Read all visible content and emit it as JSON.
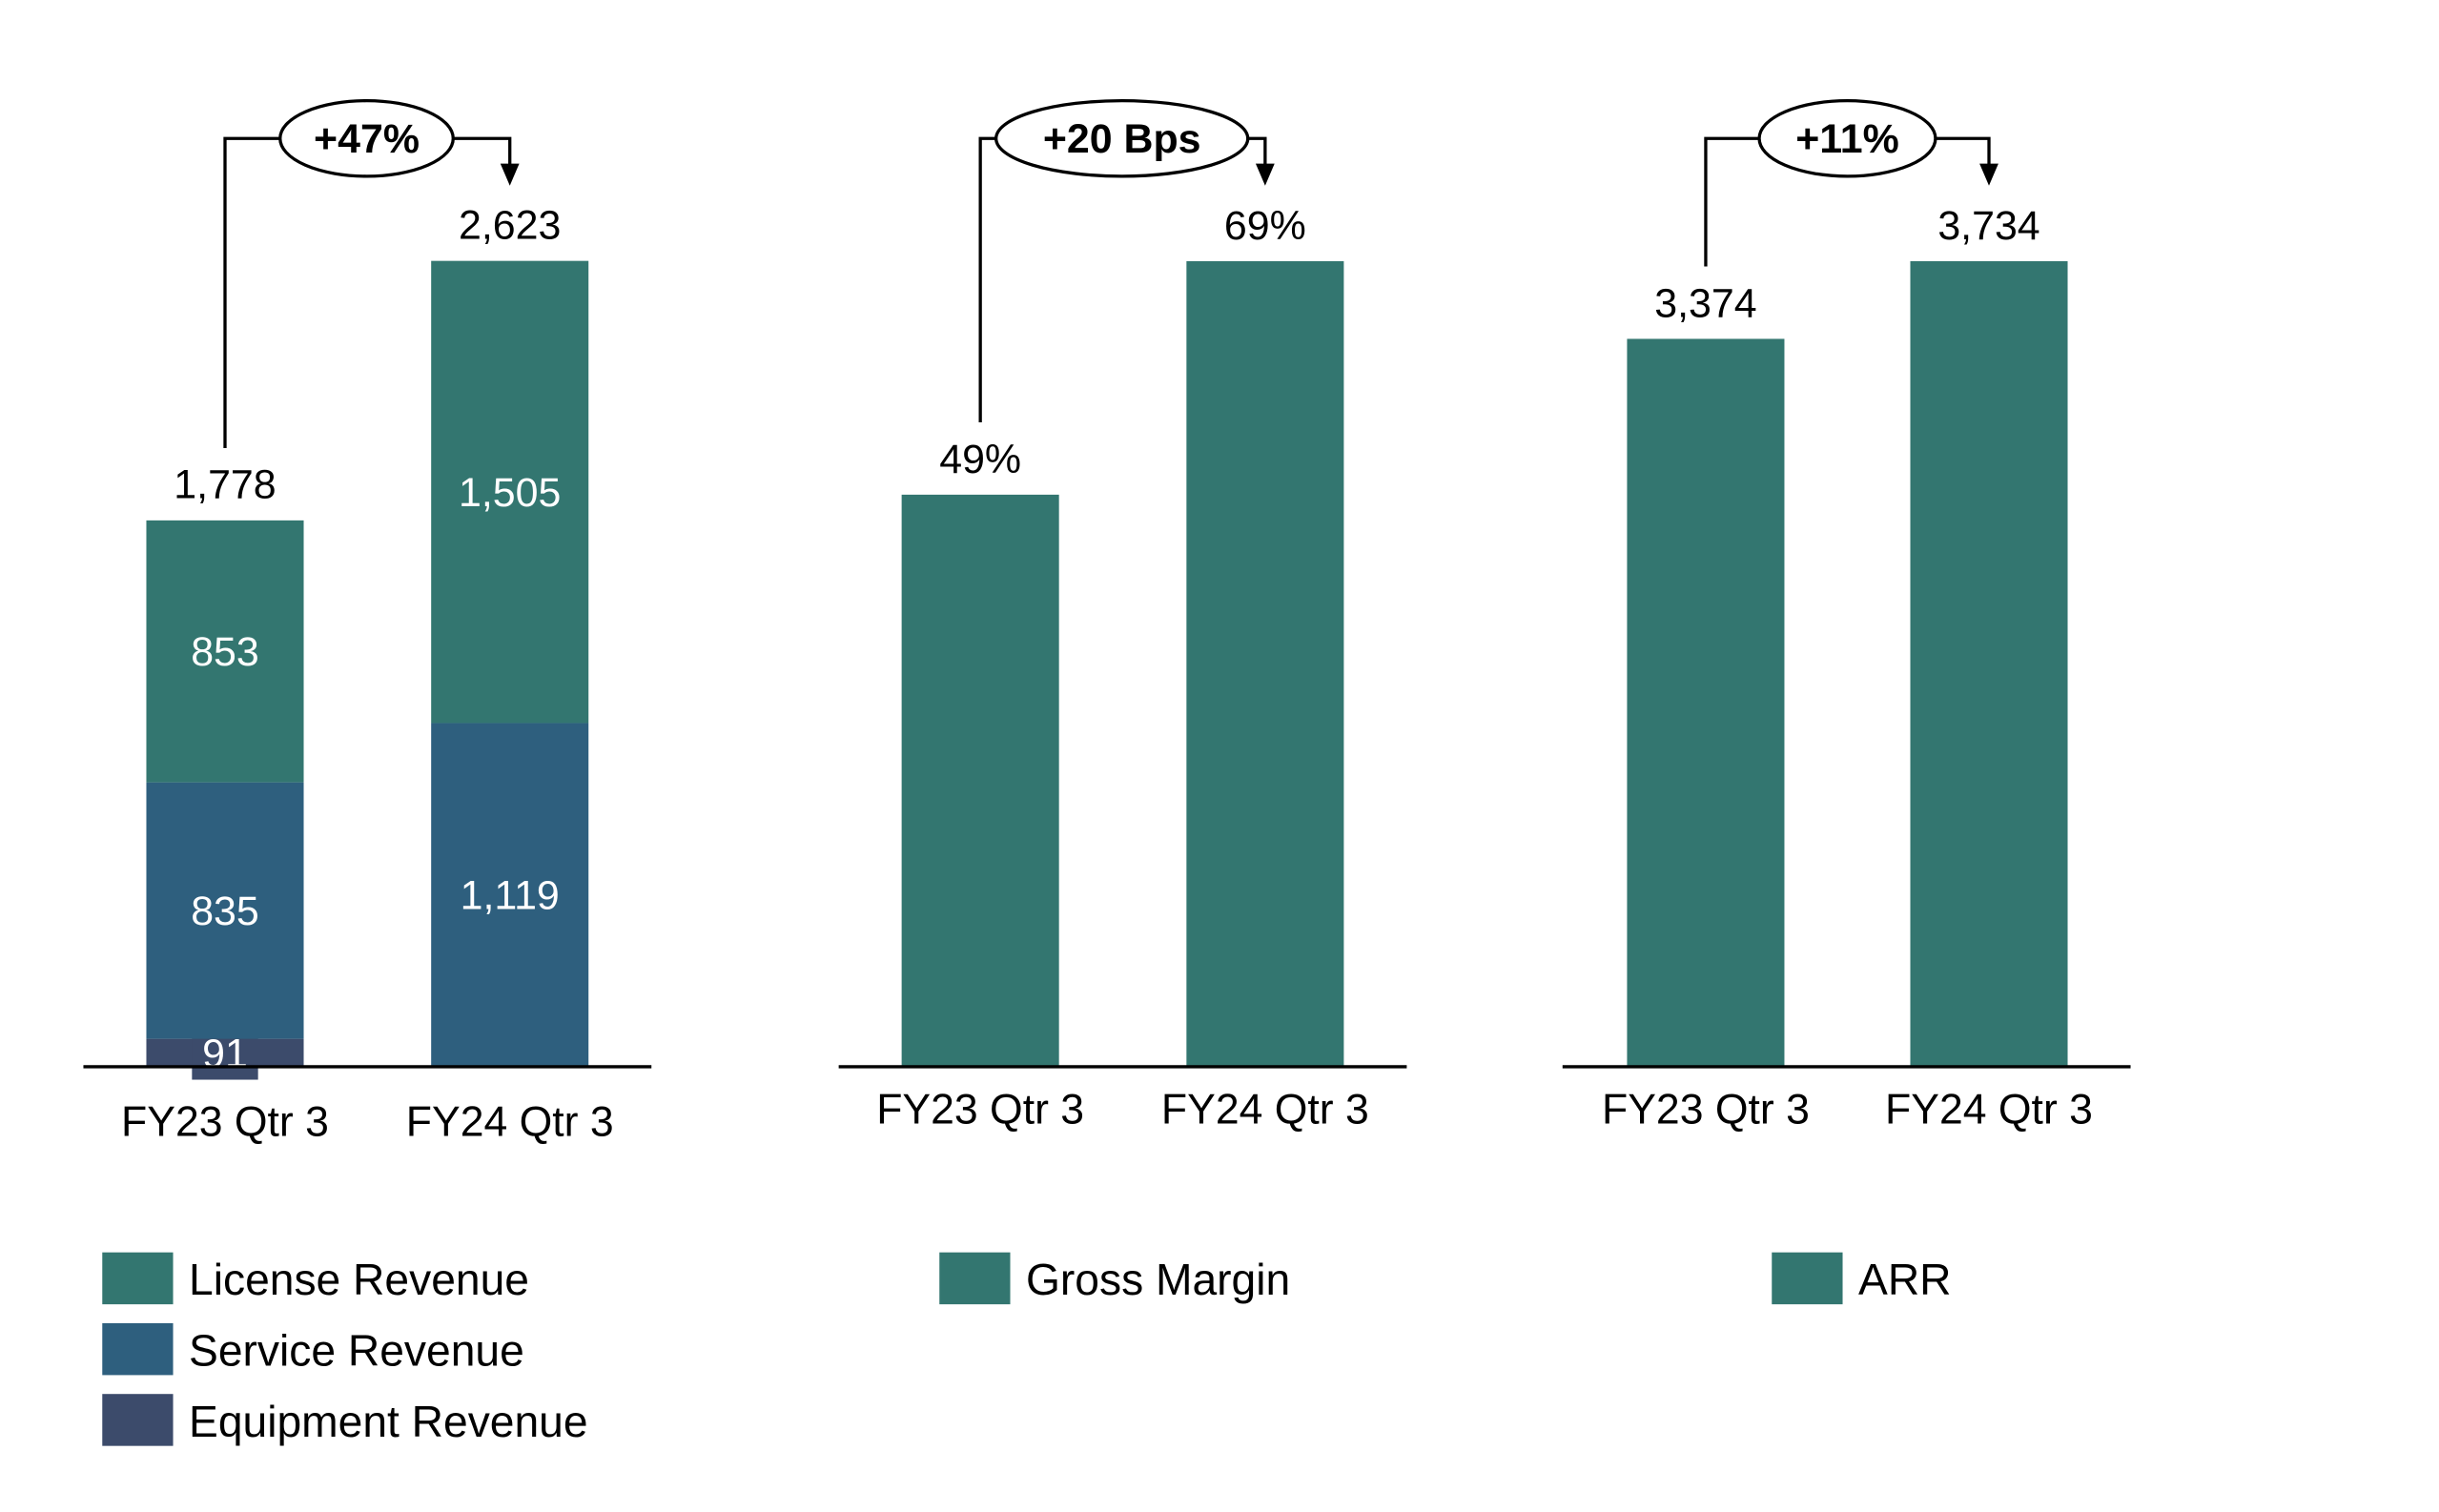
{
  "colors": {
    "license": "#337670",
    "service": "#2E5F7E",
    "equipment": "#3C4B6B",
    "single": "#337670"
  },
  "chart_data": [
    {
      "type": "bar",
      "stacked": true,
      "categories": [
        "FY23 Qtr 3",
        "FY24 Qtr 3"
      ],
      "series": [
        {
          "name": "Equipment Revenue",
          "values": [
            91,
            null
          ],
          "labels": [
            "91",
            ""
          ]
        },
        {
          "name": "Service Revenue",
          "values": [
            835,
            1119
          ],
          "labels": [
            "835",
            "1,119"
          ]
        },
        {
          "name": "License Revenue",
          "values": [
            853,
            1505
          ],
          "labels": [
            "853",
            "1,505"
          ]
        }
      ],
      "totals": [
        1778,
        2623
      ],
      "total_labels": [
        "1,778",
        "2,623"
      ],
      "annotation": "+47%",
      "ylim": [
        0,
        2623
      ]
    },
    {
      "type": "bar",
      "categories": [
        "FY23 Qtr 3",
        "FY24 Qtr 3"
      ],
      "series": [
        {
          "name": "Gross Margin",
          "values": [
            49,
            69
          ],
          "labels": [
            "49%",
            "69%"
          ]
        }
      ],
      "annotation": "+20 Bps",
      "ylim": [
        0,
        69
      ]
    },
    {
      "type": "bar",
      "categories": [
        "FY23 Qtr 3",
        "FY24 Qtr 3"
      ],
      "series": [
        {
          "name": "ARR",
          "values": [
            3374,
            3734
          ],
          "labels": [
            "3,374",
            "3,734"
          ]
        }
      ],
      "annotation": "+11%",
      "ylim": [
        0,
        3734
      ]
    }
  ]
}
